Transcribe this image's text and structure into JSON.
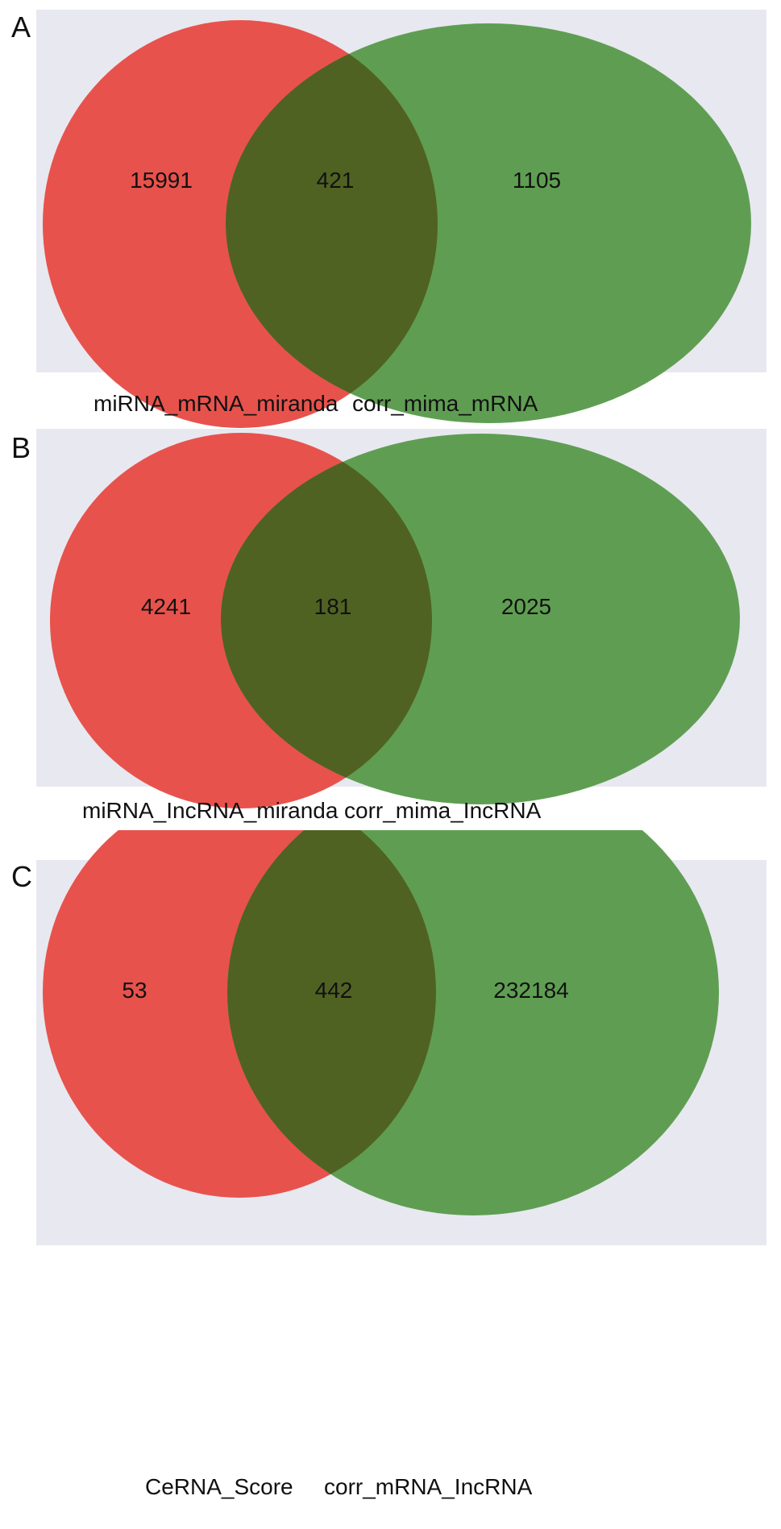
{
  "panels": [
    {
      "letter": "A",
      "left_only": "15991",
      "intersection": "421",
      "right_only": "1105",
      "left_set": "miRNA_mRNA_miranda",
      "right_set": "corr_mima_mRNA"
    },
    {
      "letter": "B",
      "left_only": "4241",
      "intersection": "181",
      "right_only": "2025",
      "left_set": "miRNA_IncRNA_miranda",
      "right_set": "corr_mima_IncRNA"
    },
    {
      "letter": "C",
      "left_only": "53",
      "intersection": "442",
      "right_only": "232184",
      "left_set": "CeRNA_Score",
      "right_set": "corr_mRNA_IncRNA"
    }
  ],
  "colors": {
    "background": "#e8e8f0",
    "left_set": "#e8524c",
    "right_set": "#5f9e52",
    "overlap": "#506222"
  }
}
